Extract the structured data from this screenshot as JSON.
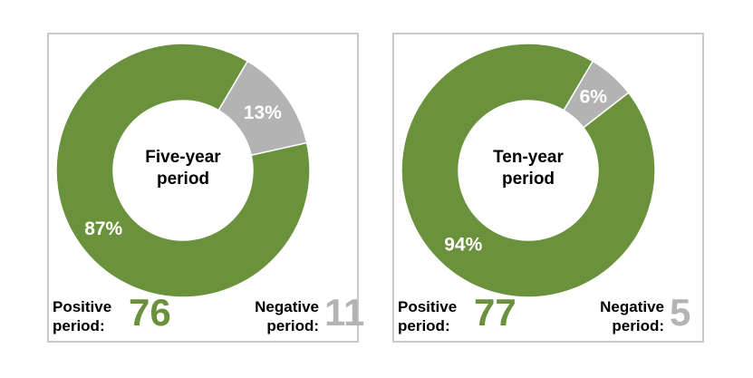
{
  "colors": {
    "positive": "#6a923c",
    "negative": "#b3b3b3",
    "hole": "#ffffff"
  },
  "chart_data": [
    {
      "type": "pie",
      "subtype": "donut",
      "center_label": [
        "Five-year",
        "period"
      ],
      "slices": [
        {
          "label": "Positive",
          "value": 87,
          "display": "87%"
        },
        {
          "label": "Negative",
          "value": 13,
          "display": "13%"
        }
      ],
      "positive_label": [
        "Positive",
        "period:"
      ],
      "positive_count": "76",
      "negative_label": [
        "Negative",
        "period:"
      ],
      "negative_count": "11"
    },
    {
      "type": "pie",
      "subtype": "donut",
      "center_label": [
        "Ten-year",
        "period"
      ],
      "slices": [
        {
          "label": "Positive",
          "value": 94,
          "display": "94%"
        },
        {
          "label": "Negative",
          "value": 6,
          "display": "6%"
        }
      ],
      "positive_label": [
        "Positive",
        "period:"
      ],
      "positive_count": "77",
      "negative_label": [
        "Negative",
        "period:"
      ],
      "negative_count": "5"
    }
  ]
}
